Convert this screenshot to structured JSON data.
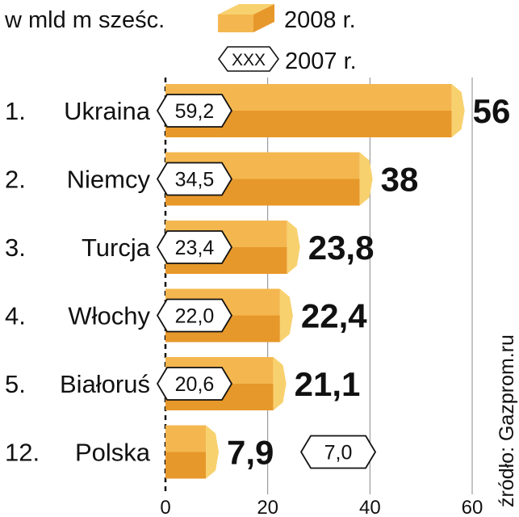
{
  "chart_data": {
    "type": "bar",
    "orientation": "horizontal",
    "unit_label": "w mld m sześc.",
    "legend": [
      {
        "key": "current",
        "label": "2008 r."
      },
      {
        "key": "previous",
        "label": "2007 r.",
        "sample": "XXX"
      }
    ],
    "categories": [
      {
        "rank": "1.",
        "name": "Ukraina"
      },
      {
        "rank": "2.",
        "name": "Niemcy"
      },
      {
        "rank": "3.",
        "name": "Turcja"
      },
      {
        "rank": "4.",
        "name": "Włochy"
      },
      {
        "rank": "5.",
        "name": "Białoruś"
      },
      {
        "rank": "12.",
        "name": "Polska"
      }
    ],
    "series": [
      {
        "key": "current",
        "name": "2008 r.",
        "values": [
          56,
          38,
          23.8,
          22.4,
          21.1,
          7.9
        ],
        "value_labels": [
          "56",
          "38",
          "23,8",
          "22,4",
          "21,1",
          "7,9"
        ]
      },
      {
        "key": "previous",
        "name": "2007 r.",
        "values": [
          59.2,
          34.5,
          23.4,
          22.0,
          20.6,
          7.0
        ],
        "value_labels": [
          "59,2",
          "34,5",
          "23,4",
          "22,0",
          "20,6",
          "7,0"
        ]
      }
    ],
    "xlim": [
      0,
      60
    ],
    "x_ticks": [
      0,
      20,
      40,
      60
    ],
    "x_tick_labels": [
      "0",
      "20",
      "40",
      "60"
    ],
    "gridlines": true,
    "source": "źródło: Gazprom.ru",
    "colors": {
      "bar_top": "#f4b74f",
      "bar_bottom": "#e7982a",
      "bar_cap": "#f8d16f",
      "text": "#111111",
      "grid": "#888888"
    }
  }
}
